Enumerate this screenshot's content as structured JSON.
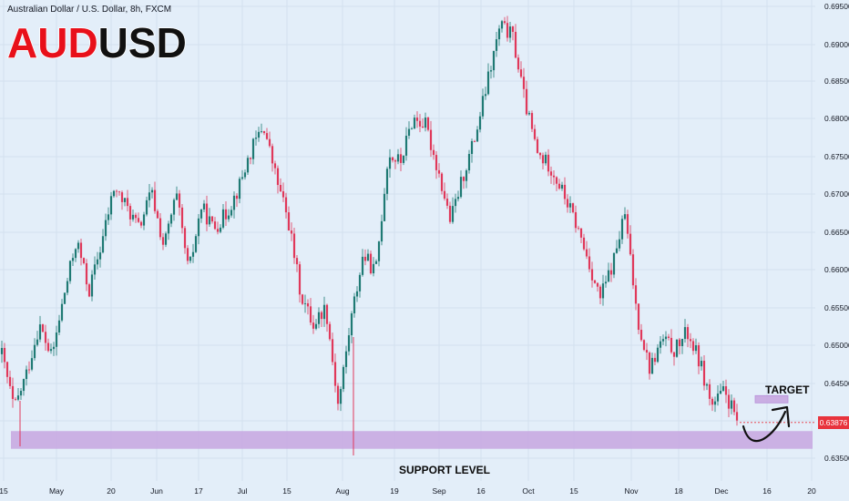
{
  "header": {
    "symbol_info": "Australian Dollar / U.S. Dollar, 8h, FXCM",
    "ticker_part1": "AUD",
    "ticker_part2": "USD"
  },
  "price_label": "0.63876",
  "annotations": {
    "support_label": "SUPPORT LEVEL",
    "target_label": "TARGET"
  },
  "colors": {
    "background": "#e3eef9",
    "bull": "#1f7a74",
    "bear": "#e0385a",
    "zone": "#c7a6e0",
    "price_tag": "#e8333d"
  },
  "chart_data": {
    "type": "candlestick",
    "symbol": "AUDUSD",
    "timeframe": "8h",
    "source": "FXCM",
    "y_ticks": [
      "0.69500",
      "0.69000",
      "0.68500",
      "0.68000",
      "0.67500",
      "0.67000",
      "0.66500",
      "0.66000",
      "0.65500",
      "0.65000",
      "0.64500",
      "0.64000",
      "0.63500"
    ],
    "ylim": [
      0.6343,
      0.6952
    ],
    "x_ticks": [
      "15",
      "May",
      "20",
      "Jun",
      "17",
      "Jul",
      "15",
      "Aug",
      "19",
      "Sep",
      "16",
      "Oct",
      "15",
      "Nov",
      "18",
      "Dec",
      "16",
      "20"
    ],
    "last_price": 0.63876,
    "support_zone": [
      0.6352,
      0.6376
    ],
    "target_zone": [
      0.6417,
      0.6424
    ],
    "close_path": [
      {
        "x": "15",
        "y": 0.648
      },
      {
        "x": "15",
        "y": 0.6405
      },
      {
        "x": "15",
        "y": 0.6455
      },
      {
        "x": "May",
        "y": 0.652
      },
      {
        "x": "May",
        "y": 0.6475
      },
      {
        "x": "May",
        "y": 0.656
      },
      {
        "x": "May",
        "y": 0.6635
      },
      {
        "x": "May",
        "y": 0.6565
      },
      {
        "x": "May",
        "y": 0.663
      },
      {
        "x": "20",
        "y": 0.6705
      },
      {
        "x": "20",
        "y": 0.668
      },
      {
        "x": "20",
        "y": 0.665
      },
      {
        "x": "Jun",
        "y": 0.67
      },
      {
        "x": "Jun",
        "y": 0.6625
      },
      {
        "x": "Jun",
        "y": 0.6695
      },
      {
        "x": "17",
        "y": 0.659
      },
      {
        "x": "17",
        "y": 0.668
      },
      {
        "x": "17",
        "y": 0.665
      },
      {
        "x": "Jul",
        "y": 0.667
      },
      {
        "x": "Jul",
        "y": 0.6705
      },
      {
        "x": "Jul",
        "y": 0.6755
      },
      {
        "x": "15",
        "y": 0.679
      },
      {
        "x": "15",
        "y": 0.672
      },
      {
        "x": "15",
        "y": 0.666
      },
      {
        "x": "15",
        "y": 0.656
      },
      {
        "x": "15",
        "y": 0.652
      },
      {
        "x": "Aug",
        "y": 0.6545
      },
      {
        "x": "Aug",
        "y": 0.641
      },
      {
        "x": "Aug",
        "y": 0.6525
      },
      {
        "x": "Aug",
        "y": 0.6615
      },
      {
        "x": "19",
        "y": 0.659
      },
      {
        "x": "19",
        "y": 0.675
      },
      {
        "x": "19",
        "y": 0.674
      },
      {
        "x": "Sep",
        "y": 0.68
      },
      {
        "x": "Sep",
        "y": 0.679
      },
      {
        "x": "Sep",
        "y": 0.673
      },
      {
        "x": "Sep",
        "y": 0.666
      },
      {
        "x": "16",
        "y": 0.672
      },
      {
        "x": "16",
        "y": 0.6775
      },
      {
        "x": "16",
        "y": 0.685
      },
      {
        "x": "Oct",
        "y": 0.6925
      },
      {
        "x": "Oct",
        "y": 0.691
      },
      {
        "x": "Oct",
        "y": 0.682
      },
      {
        "x": "Oct",
        "y": 0.675
      },
      {
        "x": "15",
        "y": 0.6735
      },
      {
        "x": "15",
        "y": 0.67
      },
      {
        "x": "15",
        "y": 0.666
      },
      {
        "x": "15",
        "y": 0.661
      },
      {
        "x": "Nov",
        "y": 0.6555
      },
      {
        "x": "Nov",
        "y": 0.66
      },
      {
        "x": "Nov",
        "y": 0.667
      },
      {
        "x": "Nov",
        "y": 0.653
      },
      {
        "x": "18",
        "y": 0.646
      },
      {
        "x": "18",
        "y": 0.65
      },
      {
        "x": "18",
        "y": 0.6485
      },
      {
        "x": "Dec",
        "y": 0.651
      },
      {
        "x": "Dec",
        "y": 0.647
      },
      {
        "x": "Dec",
        "y": 0.641
      },
      {
        "x": "Dec",
        "y": 0.643
      },
      {
        "x": "Dec",
        "y": 0.639
      }
    ]
  }
}
